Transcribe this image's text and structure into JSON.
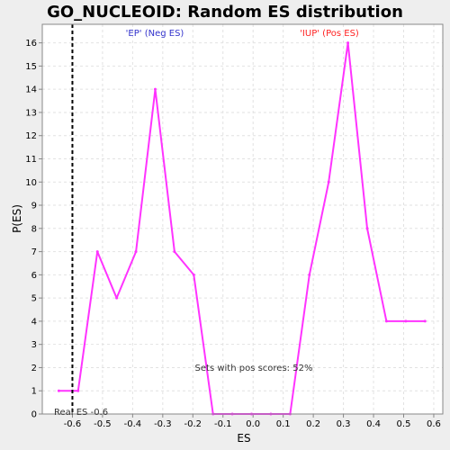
{
  "chart_data": {
    "type": "line",
    "title": "GO_NUCLEOID: Random ES distribution",
    "xlabel": "ES",
    "ylabel": "P(ES)",
    "xlim": [
      -0.7,
      0.63
    ],
    "ylim": [
      0,
      16.8
    ],
    "xticks": [
      -0.6,
      -0.5,
      -0.4,
      -0.3,
      -0.2,
      -0.1,
      0.0,
      0.1,
      0.2,
      0.3,
      0.4,
      0.5,
      0.6
    ],
    "xtick_labels": [
      "-0.6",
      "-0.5",
      "-0.4",
      "-0.3",
      "-0.2",
      "-0.1",
      "0.0",
      "0.1",
      "0.2",
      "0.3",
      "0.4",
      "0.5",
      "0.6"
    ],
    "yticks": [
      0,
      1,
      2,
      3,
      4,
      5,
      6,
      7,
      8,
      9,
      10,
      11,
      12,
      13,
      14,
      15,
      16
    ],
    "grid": true,
    "series": [
      {
        "color": "#ff33ff",
        "x": [
          -0.645,
          -0.581,
          -0.517,
          -0.453,
          -0.389,
          -0.325,
          -0.261,
          -0.197,
          -0.133,
          -0.069,
          -0.005,
          0.059,
          0.123,
          0.187,
          0.251,
          0.315,
          0.379,
          0.443,
          0.507,
          0.571
        ],
        "y": [
          1,
          1,
          7,
          5,
          7,
          14,
          7,
          6,
          0,
          0,
          0,
          0,
          0,
          6,
          10,
          16,
          8,
          4,
          4,
          4
        ]
      }
    ],
    "real_es": -0.6,
    "annotations": {
      "neg_label": "'EP' (Neg ES)",
      "neg_color": "#3333cc",
      "pos_label": "'IUP' (Pos ES)",
      "pos_color": "#ff2222",
      "sets_label": "Sets with pos scores: 52%",
      "real_es_label": "Real ES -0.6"
    }
  }
}
